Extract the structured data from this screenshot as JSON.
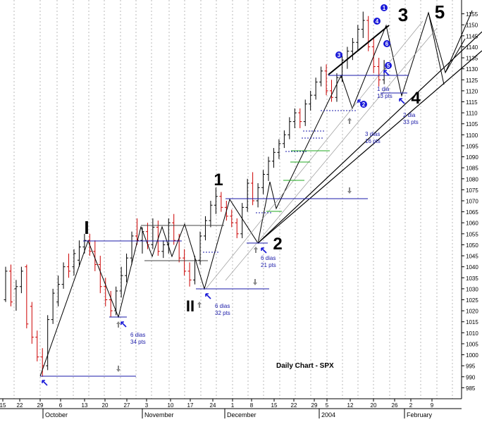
{
  "chart_data": {
    "type": "candlestick",
    "title": "Daily Chart - SPX",
    "grid": "vertical dashed",
    "y_range": [
      980,
      1160
    ],
    "y_ticks": [
      985,
      990,
      995,
      1000,
      1005,
      1010,
      1015,
      1020,
      1025,
      1030,
      1035,
      1040,
      1045,
      1050,
      1055,
      1060,
      1065,
      1070,
      1075,
      1080,
      1085,
      1090,
      1095,
      1100,
      1105,
      1110,
      1115,
      1120,
      1125,
      1130,
      1135,
      1140,
      1145,
      1150,
      1155
    ],
    "x_ticks": [
      "15",
      "22",
      "29",
      "6",
      "13",
      "20",
      "27",
      "3",
      "10",
      "17",
      "24",
      "1",
      "8",
      "15",
      "22",
      "29",
      "5",
      "12",
      "20",
      "26",
      "2",
      "9"
    ],
    "month_labels": [
      "October",
      "November",
      "December",
      "2004",
      "February"
    ],
    "bars": [
      [
        1025,
        1040,
        1024,
        1038
      ],
      [
        1038,
        1041,
        1022,
        1024
      ],
      [
        1030,
        1034,
        1020,
        1031
      ],
      [
        1031,
        1040,
        1028,
        1038
      ],
      [
        1040,
        1041,
        1012,
        1014
      ],
      [
        1022,
        1024,
        1005,
        1008
      ],
      [
        1008,
        1011,
        997,
        999
      ],
      [
        999,
        1003,
        990,
        995
      ],
      [
        995,
        1018,
        993,
        1016
      ],
      [
        1016,
        1030,
        1014,
        1028
      ],
      [
        1024,
        1036,
        1022,
        1032
      ],
      [
        1032,
        1042,
        1030,
        1040
      ],
      [
        1040,
        1046,
        1035,
        1038
      ],
      [
        1040,
        1048,
        1036,
        1046
      ],
      [
        1043,
        1052,
        1040,
        1049
      ],
      [
        1049,
        1055,
        1046,
        1052
      ],
      [
        1052,
        1055,
        1045,
        1047
      ],
      [
        1047,
        1052,
        1038,
        1041
      ],
      [
        1041,
        1045,
        1028,
        1031
      ],
      [
        1031,
        1035,
        1022,
        1025
      ],
      [
        1025,
        1029,
        1017,
        1020
      ],
      [
        1020,
        1031,
        1018,
        1029
      ],
      [
        1029,
        1040,
        1026,
        1036
      ],
      [
        1036,
        1046,
        1033,
        1044
      ],
      [
        1044,
        1056,
        1041,
        1054
      ],
      [
        1054,
        1062,
        1050,
        1052
      ],
      [
        1052,
        1058,
        1046,
        1056
      ],
      [
        1056,
        1060,
        1048,
        1050
      ],
      [
        1050,
        1062,
        1048,
        1058
      ],
      [
        1058,
        1061,
        1045,
        1047
      ],
      [
        1047,
        1052,
        1044,
        1050
      ],
      [
        1050,
        1062,
        1046,
        1060
      ],
      [
        1060,
        1064,
        1050,
        1052
      ],
      [
        1052,
        1055,
        1042,
        1044
      ],
      [
        1044,
        1048,
        1036,
        1038
      ],
      [
        1038,
        1042,
        1031,
        1034
      ],
      [
        1034,
        1045,
        1032,
        1043
      ],
      [
        1043,
        1056,
        1041,
        1054
      ],
      [
        1054,
        1063,
        1052,
        1061
      ],
      [
        1061,
        1070,
        1058,
        1068
      ],
      [
        1068,
        1076,
        1064,
        1072
      ],
      [
        1072,
        1074,
        1065,
        1067
      ],
      [
        1067,
        1070,
        1061,
        1063
      ],
      [
        1063,
        1066,
        1058,
        1060
      ],
      [
        1060,
        1062,
        1053,
        1055
      ],
      [
        1055,
        1069,
        1053,
        1067
      ],
      [
        1067,
        1080,
        1065,
        1078
      ],
      [
        1078,
        1083,
        1068,
        1070
      ],
      [
        1070,
        1078,
        1067,
        1076
      ],
      [
        1076,
        1084,
        1073,
        1082
      ],
      [
        1082,
        1090,
        1079,
        1088
      ],
      [
        1088,
        1094,
        1085,
        1092
      ],
      [
        1092,
        1098,
        1089,
        1096
      ],
      [
        1096,
        1102,
        1094,
        1100
      ],
      [
        1100,
        1108,
        1098,
        1106
      ],
      [
        1106,
        1112,
        1103,
        1110
      ],
      [
        1110,
        1112,
        1103,
        1106
      ],
      [
        1106,
        1116,
        1104,
        1114
      ],
      [
        1114,
        1120,
        1111,
        1118
      ],
      [
        1118,
        1126,
        1116,
        1124
      ],
      [
        1124,
        1131,
        1122,
        1129
      ],
      [
        1129,
        1132,
        1118,
        1120
      ],
      [
        1120,
        1125,
        1115,
        1117
      ],
      [
        1117,
        1128,
        1115,
        1126
      ],
      [
        1126,
        1136,
        1124,
        1134
      ],
      [
        1134,
        1140,
        1130,
        1138
      ],
      [
        1138,
        1144,
        1134,
        1142
      ],
      [
        1142,
        1150,
        1138,
        1148
      ],
      [
        1148,
        1156,
        1144,
        1152
      ],
      [
        1152,
        1154,
        1138,
        1140
      ],
      [
        1140,
        1144,
        1128,
        1131
      ],
      [
        1131,
        1135,
        1122,
        1125
      ],
      [
        1125,
        1134,
        1123,
        1130
      ]
    ],
    "wave_labels": [
      "I",
      "II",
      "1",
      "2",
      "3",
      "4",
      "5"
    ],
    "circled_labels": [
      "1",
      "2",
      "3",
      "4",
      "5",
      "6"
    ],
    "annotations": [
      {
        "line1": "6 dias",
        "line2": "34 pts"
      },
      {
        "line1": "6 dias",
        "line2": "32 pts"
      },
      {
        "line1": "6 dias",
        "line2": "21 pts"
      },
      {
        "line1": "3 dias",
        "line2": "16 pts"
      },
      {
        "line1": "1 dia",
        "line2": "13 pts"
      },
      {
        "line1": "2 dia",
        "line2": "33 pts"
      }
    ]
  }
}
